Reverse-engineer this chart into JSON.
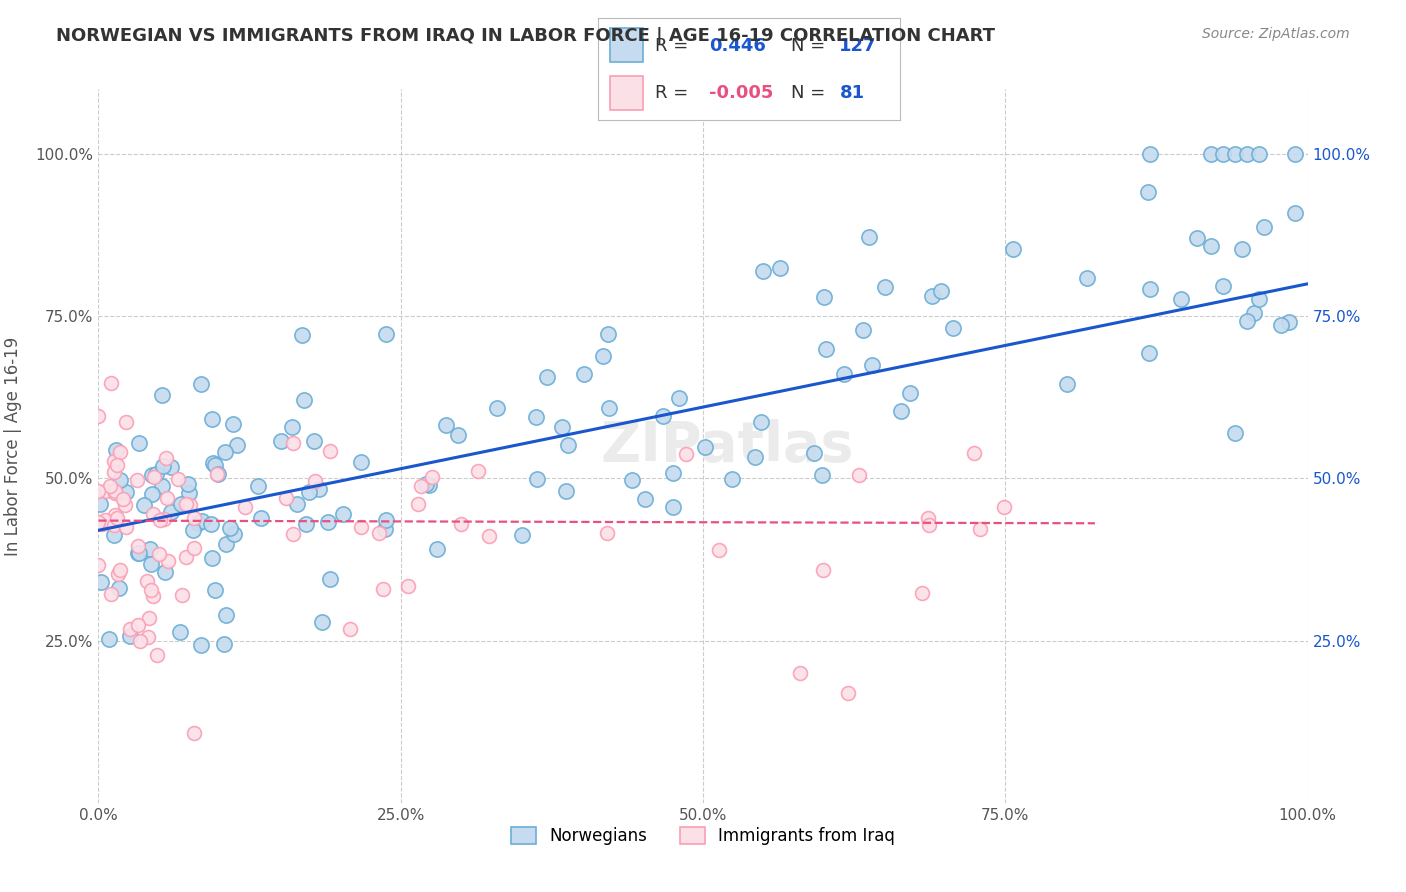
{
  "title": "NORWEGIAN VS IMMIGRANTS FROM IRAQ IN LABOR FORCE | AGE 16-19 CORRELATION CHART",
  "source": "Source: ZipAtlas.com",
  "ylabel": "In Labor Force | Age 16-19",
  "background_color": "#ffffff",
  "grid_color": "#cccccc",
  "watermark": "ZIPatlas",
  "norwegian_R": "0.446",
  "norwegian_N": "127",
  "iraqi_R": "-0.005",
  "iraqi_N": "81",
  "norwegian_fill": "#c6dbef",
  "norwegian_edge": "#6baed6",
  "iraqi_fill": "#fce0e8",
  "iraqi_edge": "#fa9fb5",
  "line_norwegian_color": "#1a56cc",
  "line_iraqi_color": "#e85080",
  "slope_nor": 0.38,
  "intercept_nor": 0.42,
  "slope_iraq": -0.005,
  "intercept_iraq": 0.435,
  "legend_box_color": "#e8f0fe",
  "legend_text_color_blue": "#1a56cc",
  "legend_text_color_dark": "#333333"
}
